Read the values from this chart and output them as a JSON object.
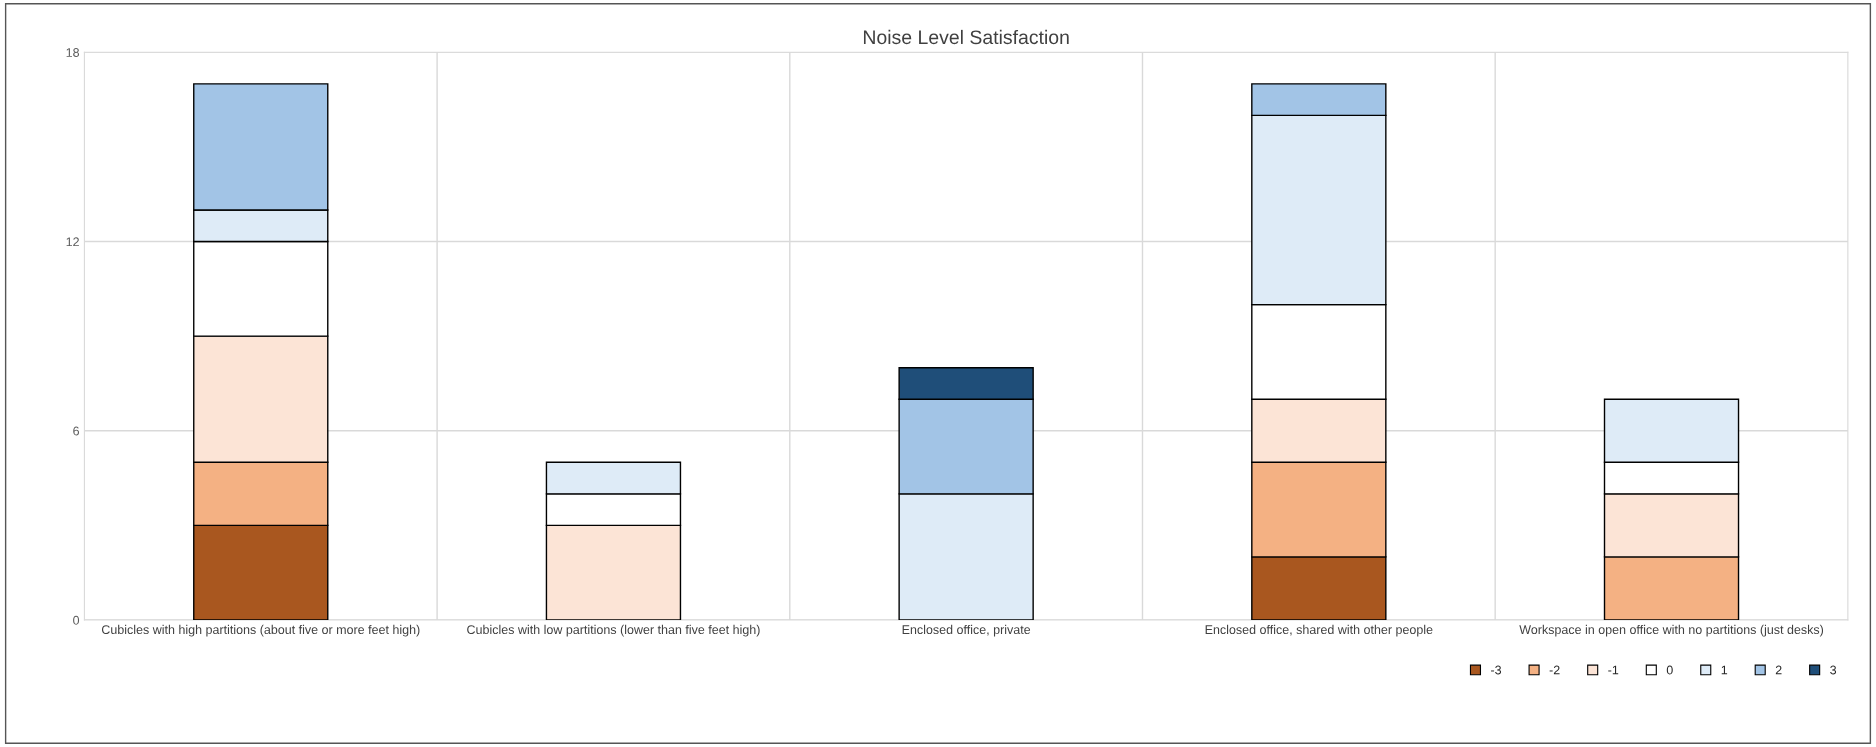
{
  "chart_data": {
    "type": "bar",
    "title": "Noise Level Satisfaction",
    "stacked": true,
    "categories": [
      "Cubicles with high partitions (about five or more feet high)",
      "Cubicles with low partitions (lower than five feet high)",
      "Enclosed office, private",
      "Enclosed office, shared with other people",
      "Workspace in open office with no partitions (just desks)"
    ],
    "series": [
      {
        "name": "-3",
        "color": "#a9571f",
        "values": [
          3,
          0,
          0,
          2,
          0
        ]
      },
      {
        "name": "-2",
        "color": "#f4b183",
        "values": [
          2,
          0,
          0,
          3,
          2
        ]
      },
      {
        "name": "-1",
        "color": "#fce4d6",
        "values": [
          4,
          3,
          0,
          2,
          2
        ]
      },
      {
        "name": "0",
        "color": "#ffffff",
        "values": [
          3,
          1,
          0,
          3,
          1
        ]
      },
      {
        "name": "1",
        "color": "#deebf7",
        "values": [
          1,
          1,
          4,
          6,
          2
        ]
      },
      {
        "name": "2",
        "color": "#a2c4e6",
        "values": [
          4,
          0,
          3,
          1,
          0
        ]
      },
      {
        "name": "3",
        "color": "#1f4e79",
        "values": [
          0,
          0,
          1,
          0,
          0
        ]
      }
    ],
    "ylim": [
      0,
      18
    ],
    "yticks": [
      0,
      6,
      12,
      18
    ],
    "grid": "y",
    "legend": "bottom right"
  }
}
